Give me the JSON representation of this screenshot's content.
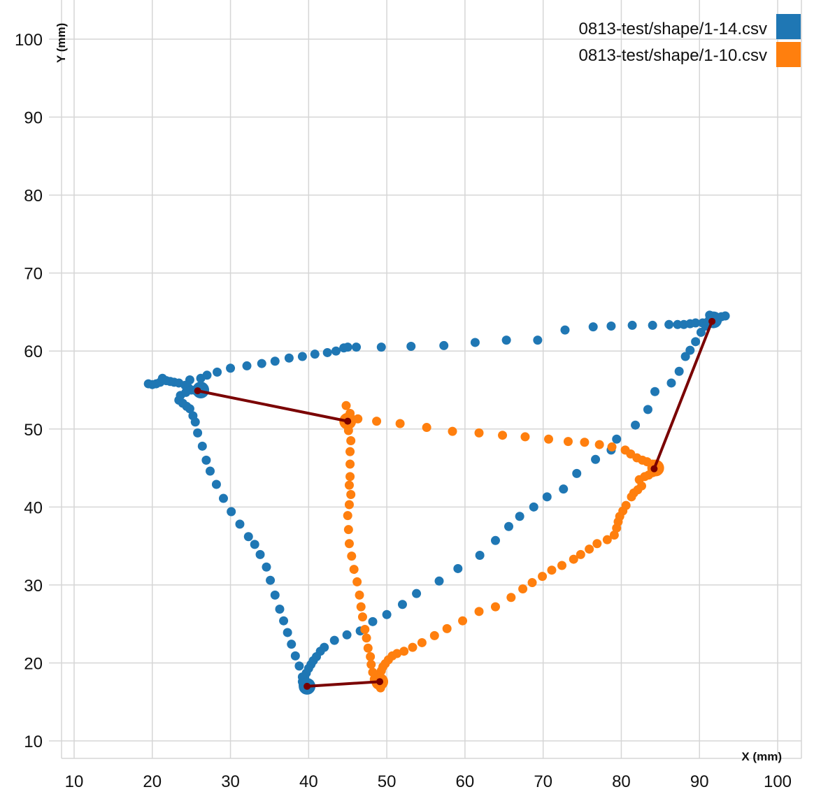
{
  "chart_data": {
    "type": "scatter",
    "title": "",
    "xlabel": "X (mm)",
    "ylabel": "Y (mm)",
    "xlim": [
      7,
      103
    ],
    "ylim": [
      8,
      103
    ],
    "x_ticks": [
      10,
      20,
      30,
      40,
      50,
      60,
      70,
      80,
      90,
      100
    ],
    "y_ticks": [
      10,
      20,
      30,
      40,
      50,
      60,
      70,
      80,
      90,
      100
    ],
    "grid": true,
    "legend_position": "top-right",
    "series": [
      {
        "name": "0813-test/shape/1-14.csv",
        "color": "#1f77b4",
        "points": [
          [
            19.5,
            55.8
          ],
          [
            20,
            55.7
          ],
          [
            20.5,
            55.8
          ],
          [
            21,
            56
          ],
          [
            21.3,
            56.5
          ],
          [
            21.8,
            56.2
          ],
          [
            22.3,
            56.1
          ],
          [
            22.8,
            56
          ],
          [
            23.4,
            55.9
          ],
          [
            24.2,
            55.6
          ],
          [
            24.6,
            55.3
          ],
          [
            25,
            55
          ],
          [
            25.6,
            54.9
          ],
          [
            26.2,
            55
          ],
          [
            24.8,
            56.3
          ],
          [
            26.2,
            56.5
          ],
          [
            27,
            56.9
          ],
          [
            28.3,
            57.3
          ],
          [
            30,
            57.8
          ],
          [
            32.1,
            58.1
          ],
          [
            34,
            58.4
          ],
          [
            35.7,
            58.7
          ],
          [
            37.5,
            59.1
          ],
          [
            39.2,
            59.3
          ],
          [
            40.8,
            59.6
          ],
          [
            42.4,
            59.8
          ],
          [
            43.5,
            60
          ],
          [
            44.5,
            60.4
          ],
          [
            45,
            60.5
          ],
          [
            46.1,
            60.5
          ],
          [
            49.3,
            60.5
          ],
          [
            53.1,
            60.6
          ],
          [
            57.3,
            60.7
          ],
          [
            61.3,
            61.1
          ],
          [
            65.3,
            61.4
          ],
          [
            69.3,
            61.4
          ],
          [
            72.8,
            62.7
          ],
          [
            76.4,
            63.1
          ],
          [
            78.7,
            63.2
          ],
          [
            81.4,
            63.3
          ],
          [
            84,
            63.3
          ],
          [
            86.1,
            63.4
          ],
          [
            87.2,
            63.4
          ],
          [
            88,
            63.4
          ],
          [
            88.8,
            63.5
          ],
          [
            89.5,
            63.6
          ],
          [
            90.4,
            63.6
          ],
          [
            91,
            63.7
          ],
          [
            91.5,
            64
          ],
          [
            91.8,
            64
          ],
          [
            92.3,
            64.2
          ],
          [
            92.8,
            64.4
          ],
          [
            93.3,
            64.5
          ],
          [
            91.3,
            64.6
          ],
          [
            90.8,
            63.2
          ],
          [
            90.2,
            62.4
          ],
          [
            89.5,
            61.2
          ],
          [
            88.8,
            60.1
          ],
          [
            88.2,
            59.3
          ],
          [
            87.4,
            57.4
          ],
          [
            86.4,
            55.9
          ],
          [
            84.3,
            54.8
          ],
          [
            83.4,
            52.5
          ],
          [
            81.8,
            50.5
          ],
          [
            79.4,
            48.7
          ],
          [
            78.7,
            47.3
          ],
          [
            76.7,
            46.1
          ],
          [
            74.3,
            44.3
          ],
          [
            72.6,
            42.3
          ],
          [
            70.5,
            41.3
          ],
          [
            68.8,
            40
          ],
          [
            67,
            38.8
          ],
          [
            65.6,
            37.5
          ],
          [
            63.9,
            35.7
          ],
          [
            61.9,
            33.8
          ],
          [
            59.1,
            32.1
          ],
          [
            56.7,
            30.5
          ],
          [
            53.8,
            28.9
          ],
          [
            52,
            27.5
          ],
          [
            50,
            26.2
          ],
          [
            48.2,
            25.3
          ],
          [
            46.6,
            24.1
          ],
          [
            44.9,
            23.6
          ],
          [
            43.3,
            22.9
          ],
          [
            42,
            22
          ],
          [
            41.5,
            21.5
          ],
          [
            41,
            20.8
          ],
          [
            40.6,
            20.3
          ],
          [
            40.3,
            19.8
          ],
          [
            40,
            19.3
          ],
          [
            39.7,
            18.7
          ],
          [
            39.5,
            18.2
          ],
          [
            39.2,
            17.6
          ],
          [
            39.6,
            17.2
          ],
          [
            39.8,
            17
          ],
          [
            39.3,
            17.2
          ],
          [
            39.2,
            18.2
          ],
          [
            38.8,
            19.6
          ],
          [
            38.3,
            20.9
          ],
          [
            37.8,
            22.4
          ],
          [
            37.3,
            23.9
          ],
          [
            36.8,
            25.4
          ],
          [
            36.3,
            26.9
          ],
          [
            35.7,
            28.7
          ],
          [
            35.1,
            30.6
          ],
          [
            34.6,
            32.3
          ],
          [
            33.8,
            33.9
          ],
          [
            33.1,
            35.2
          ],
          [
            32.3,
            36.2
          ],
          [
            31.2,
            37.8
          ],
          [
            30.1,
            39.4
          ],
          [
            29.1,
            41.1
          ],
          [
            28.2,
            42.9
          ],
          [
            27.4,
            44.6
          ],
          [
            26.9,
            46
          ],
          [
            26.4,
            47.8
          ],
          [
            25.8,
            49.5
          ],
          [
            25.5,
            50.9
          ],
          [
            25.2,
            51.7
          ],
          [
            24.8,
            52.6
          ],
          [
            24.4,
            52.9
          ],
          [
            23.9,
            53.3
          ],
          [
            23.4,
            53.7
          ],
          [
            23.6,
            54.3
          ],
          [
            24.3,
            54.7
          ],
          [
            26.3,
            54.8
          ]
        ],
        "markers": [
          [
            26.2,
            55
          ],
          [
            91.8,
            64
          ],
          [
            39.8,
            17
          ]
        ]
      },
      {
        "name": "0813-test/shape/1-10.csv",
        "color": "#ff7f0e",
        "points": [
          [
            45,
            51
          ],
          [
            44.8,
            53
          ],
          [
            45.3,
            52
          ],
          [
            45.5,
            51.3
          ],
          [
            46.3,
            51.3
          ],
          [
            48.7,
            51
          ],
          [
            51.7,
            50.7
          ],
          [
            55.1,
            50.2
          ],
          [
            58.4,
            49.7
          ],
          [
            61.8,
            49.5
          ],
          [
            64.8,
            49.2
          ],
          [
            67.7,
            49
          ],
          [
            70.7,
            48.7
          ],
          [
            73.2,
            48.4
          ],
          [
            75.3,
            48.3
          ],
          [
            77.2,
            48
          ],
          [
            78.8,
            47.7
          ],
          [
            80.5,
            47.3
          ],
          [
            81.2,
            46.8
          ],
          [
            82,
            46.3
          ],
          [
            82.7,
            46
          ],
          [
            83.3,
            45.8
          ],
          [
            84,
            45.5
          ],
          [
            84.4,
            45.2
          ],
          [
            84.6,
            45
          ],
          [
            84.3,
            44.8
          ],
          [
            84,
            44.4
          ],
          [
            83.5,
            44.1
          ],
          [
            83,
            43.9
          ],
          [
            82.3,
            43.5
          ],
          [
            82.6,
            42.7
          ],
          [
            82.1,
            42.2
          ],
          [
            81.6,
            41.8
          ],
          [
            81.3,
            41.3
          ],
          [
            80.6,
            40.2
          ],
          [
            80.2,
            39.5
          ],
          [
            79.8,
            38.8
          ],
          [
            79.6,
            38.1
          ],
          [
            79.4,
            37.3
          ],
          [
            79.1,
            36.4
          ],
          [
            78.2,
            35.8
          ],
          [
            76.9,
            35.3
          ],
          [
            75.9,
            34.6
          ],
          [
            74.8,
            33.9
          ],
          [
            73.9,
            33.3
          ],
          [
            72.4,
            32.5
          ],
          [
            71.1,
            31.9
          ],
          [
            69.9,
            31.1
          ],
          [
            68.6,
            30.3
          ],
          [
            67.4,
            29.5
          ],
          [
            65.9,
            28.4
          ],
          [
            63.9,
            27.2
          ],
          [
            61.8,
            26.6
          ],
          [
            59.7,
            25.4
          ],
          [
            57.7,
            24.4
          ],
          [
            56.1,
            23.5
          ],
          [
            54.5,
            22.6
          ],
          [
            53.3,
            22
          ],
          [
            52.2,
            21.5
          ],
          [
            51.3,
            21.2
          ],
          [
            50.7,
            20.9
          ],
          [
            50.2,
            20.4
          ],
          [
            49.8,
            19.9
          ],
          [
            49.5,
            19.5
          ],
          [
            49.3,
            19
          ],
          [
            49,
            18.3
          ],
          [
            48.8,
            17.6
          ],
          [
            49.3,
            17.3
          ],
          [
            49.2,
            16.8
          ],
          [
            48.4,
            17.9
          ],
          [
            48.2,
            18.8
          ],
          [
            48,
            19.8
          ],
          [
            47.9,
            20.8
          ],
          [
            47.6,
            21.9
          ],
          [
            47.4,
            23.2
          ],
          [
            47.2,
            24.3
          ],
          [
            46.9,
            25.9
          ],
          [
            46.7,
            27.2
          ],
          [
            46.5,
            28.7
          ],
          [
            46.2,
            30.4
          ],
          [
            45.8,
            32
          ],
          [
            45.5,
            33.7
          ],
          [
            45.2,
            35.3
          ],
          [
            45.1,
            37.1
          ],
          [
            45,
            38.9
          ],
          [
            45.2,
            40.3
          ],
          [
            45.4,
            41.6
          ],
          [
            45.2,
            42.8
          ],
          [
            45.3,
            43.9
          ],
          [
            45.3,
            45.5
          ],
          [
            45.3,
            47.1
          ],
          [
            45.4,
            48.5
          ],
          [
            45.1,
            49.8
          ],
          [
            45.1,
            50.5
          ]
        ],
        "markers": [
          [
            45,
            51
          ],
          [
            84.4,
            45
          ],
          [
            49.1,
            17.6
          ]
        ]
      }
    ],
    "connections": {
      "color": "#7a0000",
      "points": [
        [
          25.8,
          54.9
        ],
        [
          45,
          51
        ],
        [
          84.2,
          44.9
        ],
        [
          91.6,
          63.8
        ],
        [
          49.1,
          17.6
        ],
        [
          39.8,
          17
        ]
      ],
      "segments": [
        [
          0,
          1
        ],
        [
          2,
          3
        ],
        [
          4,
          5
        ]
      ]
    }
  }
}
